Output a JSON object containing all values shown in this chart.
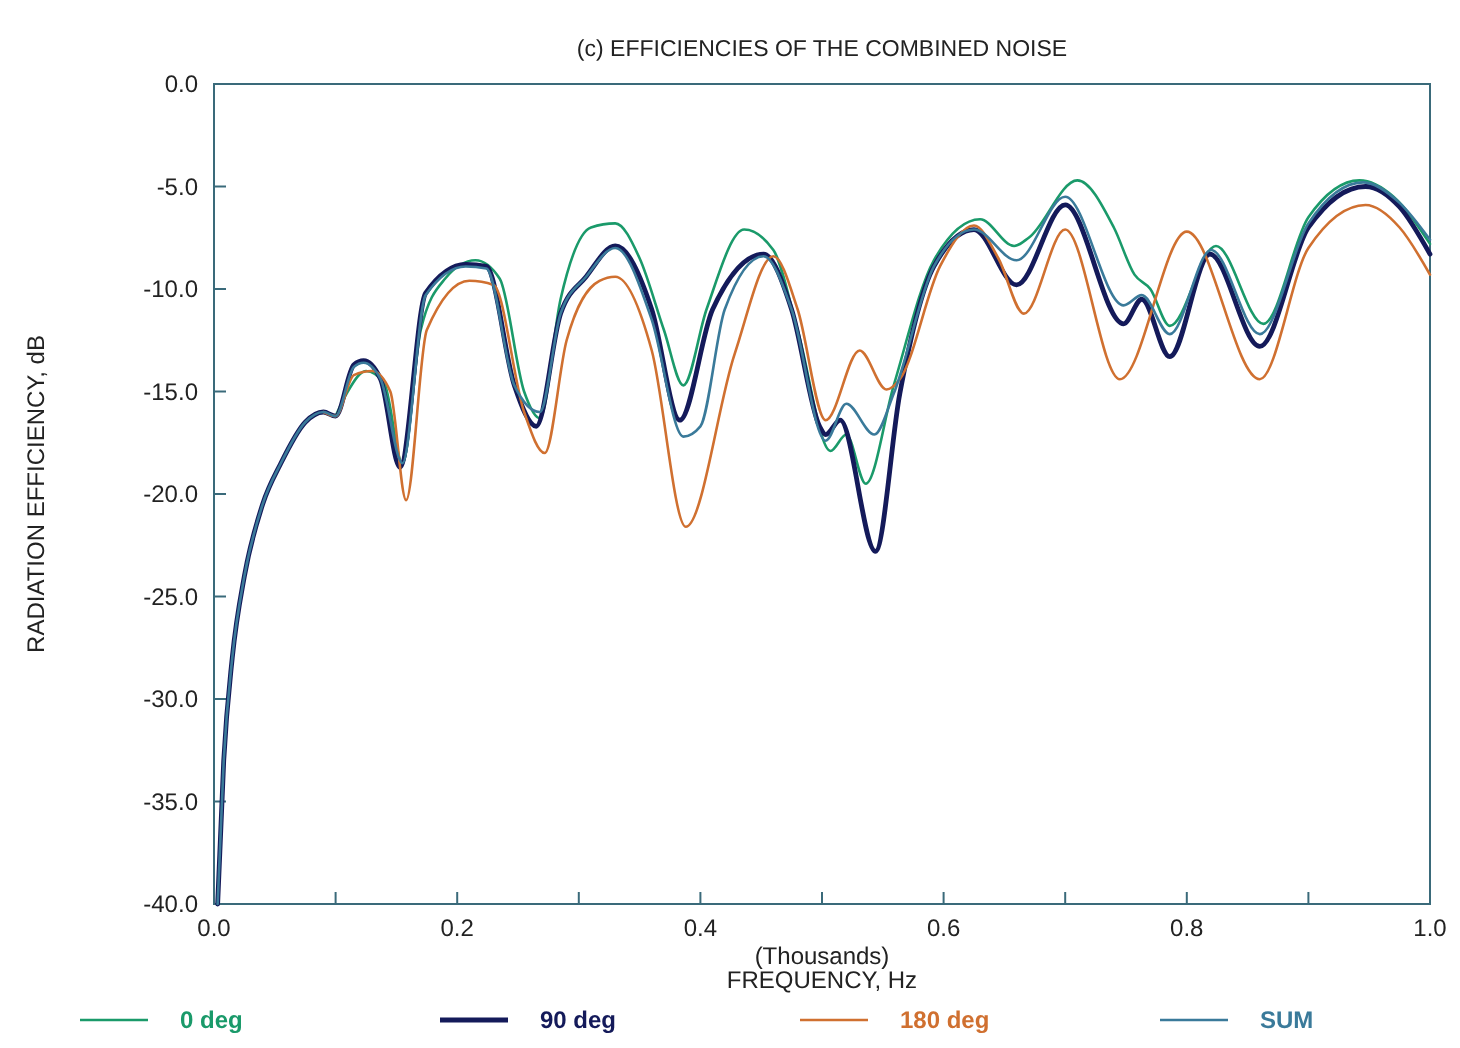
{
  "chart_data": {
    "type": "line",
    "title": "(c) EFFICIENCIES OF THE COMBINED NOISE",
    "xlabel": "(Thousands)\nFREQUENCY, Hz",
    "ylabel": "RADIATION EFFICIENCY, dB",
    "xlim": [
      0,
      1
    ],
    "xticks": [
      {
        "value": 0,
        "label": "0.0"
      },
      {
        "value": 0.1,
        "label": null
      },
      {
        "value": 0.2,
        "label": "0.2"
      },
      {
        "value": 0.3,
        "label": null
      },
      {
        "value": 0.4,
        "label": "0.4"
      },
      {
        "value": 0.5,
        "label": null
      },
      {
        "value": 0.6,
        "label": "0.6"
      },
      {
        "value": 0.7,
        "label": null
      },
      {
        "value": 0.8,
        "label": "0.8"
      },
      {
        "value": 0.9,
        "label": null
      },
      {
        "value": 1,
        "label": "1.0"
      }
    ],
    "ylim": [
      -40,
      0
    ],
    "yticks": [
      {
        "value": 0,
        "label": "0.0"
      },
      {
        "value": -5,
        "label": "-5.0"
      },
      {
        "value": -10,
        "label": "-10.0"
      },
      {
        "value": -15,
        "label": "-15.0"
      },
      {
        "value": -20,
        "label": "-20.0"
      },
      {
        "value": -25,
        "label": "-25.0"
      },
      {
        "value": -30,
        "label": "-30.0"
      },
      {
        "value": -35,
        "label": "-35.0"
      },
      {
        "value": -40,
        "label": "-40.0"
      }
    ],
    "grid": false,
    "legend": "bottom",
    "marker": "none",
    "line_style": "solid",
    "series": [
      {
        "name": "0 deg",
        "color": "#1a9a6a",
        "x": [
          0.1,
          0.11,
          0.125,
          0.14,
          0.155,
          0.17,
          0.19,
          0.215,
          0.235,
          0.255,
          0.268,
          0.285,
          0.31,
          0.33,
          0.35,
          0.37,
          0.386,
          0.405,
          0.436,
          0.46,
          0.48,
          0.507,
          0.52,
          0.536,
          0.559,
          0.592,
          0.63,
          0.658,
          0.67,
          0.71,
          0.74,
          0.757,
          0.77,
          0.786,
          0.824,
          0.863,
          0.9,
          0.942,
          0.97,
          1.0
        ],
        "values": [
          -16.2,
          -15,
          -14,
          -14.6,
          -18.5,
          -12,
          -9.5,
          -8.6,
          -9.5,
          -15,
          -16.3,
          -10.5,
          -7,
          -6.8,
          -8.5,
          -12,
          -14.7,
          -11,
          -7.1,
          -8.1,
          -12,
          -17.9,
          -17.1,
          -19.5,
          -14.7,
          -8.6,
          -6.6,
          -7.9,
          -7.5,
          -4.7,
          -7,
          -9.3,
          -10,
          -11.8,
          -7.9,
          -11.7,
          -6.5,
          -4.7,
          -5.5,
          -7.8
        ]
      },
      {
        "name": "90 deg",
        "color": "#141a5a",
        "x": [
          0.003,
          0.008,
          0.015,
          0.025,
          0.04,
          0.055,
          0.075,
          0.09,
          0.1,
          0.115,
          0.123,
          0.137,
          0.153,
          0.174,
          0.207,
          0.224,
          0.247,
          0.265,
          0.285,
          0.306,
          0.33,
          0.36,
          0.383,
          0.41,
          0.452,
          0.475,
          0.498,
          0.503,
          0.515,
          0.544,
          0.564,
          0.592,
          0.625,
          0.66,
          0.7,
          0.748,
          0.763,
          0.786,
          0.819,
          0.86,
          0.9,
          0.947,
          0.975,
          1.0
        ],
        "values": [
          -40,
          -33,
          -28,
          -24,
          -20.5,
          -18.5,
          -16.5,
          -16,
          -16.2,
          -13.7,
          -13.5,
          -14.4,
          -18.7,
          -10.2,
          -8.8,
          -8.9,
          -14.7,
          -16.7,
          -11.2,
          -9.4,
          -7.9,
          -11,
          -16.4,
          -11,
          -8.3,
          -11,
          -16.7,
          -17.1,
          -16.4,
          -22.8,
          -15.1,
          -8.9,
          -7.1,
          -9.8,
          -5.9,
          -11.7,
          -10.5,
          -13.3,
          -8.3,
          -12.8,
          -7,
          -5,
          -6,
          -8.3
        ]
      },
      {
        "name": "180 deg",
        "color": "#d07030",
        "x": [
          0.09,
          0.1,
          0.115,
          0.13,
          0.145,
          0.158,
          0.175,
          0.21,
          0.23,
          0.255,
          0.272,
          0.29,
          0.317,
          0.33,
          0.36,
          0.388,
          0.428,
          0.46,
          0.48,
          0.503,
          0.531,
          0.553,
          0.564,
          0.597,
          0.625,
          0.645,
          0.666,
          0.7,
          0.745,
          0.8,
          0.86,
          0.9,
          0.947,
          0.975,
          1.0
        ],
        "values": [
          -16,
          -16.2,
          -14.2,
          -14,
          -15,
          -20.3,
          -12,
          -9.6,
          -9.8,
          -16,
          -18,
          -12.5,
          -9.6,
          -9.4,
          -13,
          -21.6,
          -13.2,
          -8.4,
          -11,
          -16.4,
          -13,
          -14.9,
          -14.4,
          -8.9,
          -6.9,
          -8.5,
          -11.2,
          -7.1,
          -14.4,
          -7.2,
          -14.4,
          -8,
          -5.9,
          -7,
          -9.3
        ]
      },
      {
        "name": "SUM",
        "color": "#3a7a9a",
        "x": [
          0.003,
          0.008,
          0.015,
          0.025,
          0.04,
          0.055,
          0.075,
          0.09,
          0.1,
          0.115,
          0.123,
          0.137,
          0.155,
          0.174,
          0.207,
          0.224,
          0.247,
          0.268,
          0.285,
          0.306,
          0.33,
          0.36,
          0.386,
          0.4,
          0.42,
          0.452,
          0.475,
          0.503,
          0.52,
          0.543,
          0.559,
          0.592,
          0.625,
          0.66,
          0.7,
          0.748,
          0.763,
          0.786,
          0.82,
          0.86,
          0.9,
          0.945,
          0.975,
          1.0
        ],
        "values": [
          -40,
          -33,
          -28,
          -24,
          -20.5,
          -18.5,
          -16.5,
          -16,
          -16.2,
          -13.8,
          -13.6,
          -14.4,
          -18.5,
          -10.3,
          -8.9,
          -9,
          -14.7,
          -16,
          -11.2,
          -9.4,
          -8,
          -11.5,
          -17.2,
          -16.7,
          -11,
          -8.4,
          -11,
          -17.4,
          -15.6,
          -17.1,
          -15.1,
          -8.9,
          -7.1,
          -8.6,
          -5.5,
          -10.8,
          -10.3,
          -12.2,
          -8.1,
          -12.2,
          -6.8,
          -4.8,
          -5.8,
          -7.6
        ]
      }
    ]
  }
}
